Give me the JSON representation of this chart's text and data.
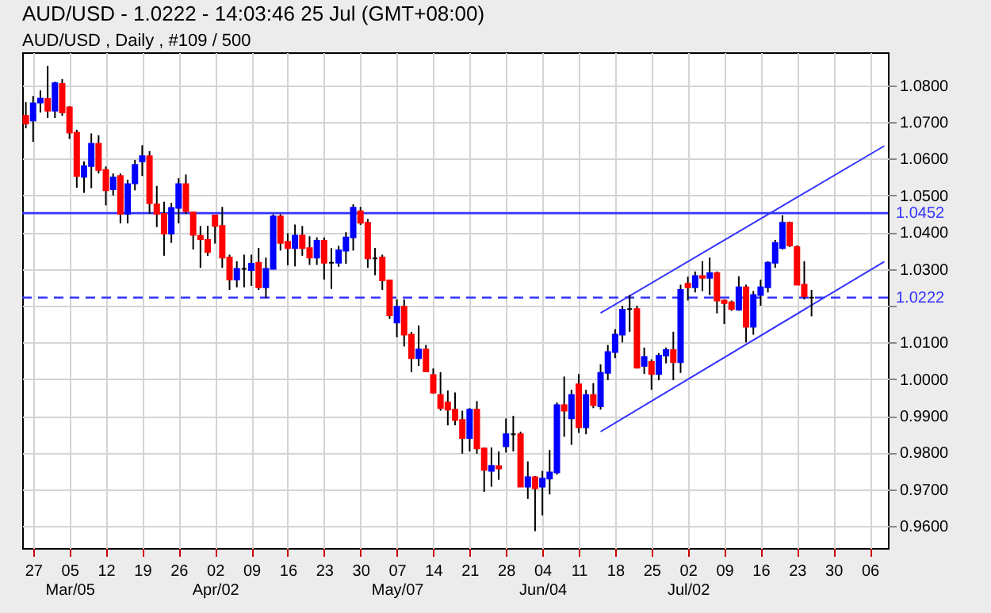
{
  "chart_data": {
    "type": "candlestick",
    "title": "AUD/USD - 1.0222 - 14:03:46  25 Jul (GMT+08:00)",
    "subtitle": "AUD/USD , Daily , #109 / 500",
    "categories": [
      null,
      "27",
      null,
      null,
      null,
      null,
      "05\nMar/05",
      null,
      null,
      null,
      null,
      "12",
      null,
      null,
      null,
      null,
      "19",
      null,
      null,
      null,
      null,
      "26",
      null,
      null,
      null,
      null,
      "02\nApr/02",
      null,
      null,
      null,
      null,
      "09",
      null,
      null,
      null,
      null,
      "16",
      null,
      null,
      null,
      null,
      "23",
      null,
      null,
      null,
      null,
      "30",
      null,
      null,
      null,
      null,
      "07\nMay/07",
      null,
      null,
      null,
      null,
      "14",
      null,
      null,
      null,
      null,
      "21",
      null,
      null,
      null,
      null,
      "28",
      null,
      null,
      null,
      null,
      "04\nJun/04",
      null,
      null,
      null,
      null,
      "11",
      null,
      null,
      null,
      null,
      "18",
      null,
      null,
      null,
      null,
      "25",
      null,
      null,
      null,
      null,
      "02\nJul/02",
      null,
      null,
      null,
      null,
      "09",
      null,
      null,
      null,
      null,
      "16",
      null,
      null,
      null,
      null,
      "23",
      null,
      null,
      null,
      null,
      "30",
      null,
      null,
      null,
      null,
      "06",
      null,
      null
    ],
    "ohlc": [
      [
        1.0717,
        1.0754,
        1.0683,
        1.0696
      ],
      [
        1.0704,
        1.0771,
        1.0646,
        1.0751
      ],
      [
        1.0753,
        1.0786,
        1.0726,
        1.0764
      ],
      [
        1.0763,
        1.0853,
        1.0711,
        1.0731
      ],
      [
        1.0731,
        1.081,
        1.0711,
        1.0806
      ],
      [
        1.0804,
        1.0817,
        1.0717,
        1.0726
      ],
      [
        1.074,
        1.0743,
        1.0654,
        1.0671
      ],
      [
        1.0671,
        1.0679,
        1.0521,
        1.0553
      ],
      [
        1.0551,
        1.0593,
        1.0507,
        1.058
      ],
      [
        1.058,
        1.0669,
        1.052,
        1.0641
      ],
      [
        1.0641,
        1.0664,
        1.056,
        1.0569
      ],
      [
        1.057,
        1.0579,
        1.0473,
        1.0514
      ],
      [
        1.0517,
        1.056,
        1.05,
        1.0549
      ],
      [
        1.0553,
        1.056,
        1.0424,
        1.045
      ],
      [
        1.045,
        1.0543,
        1.0424,
        1.0531
      ],
      [
        1.0533,
        1.0597,
        1.0514,
        1.0583
      ],
      [
        1.0593,
        1.0637,
        1.0553,
        1.0607
      ],
      [
        1.0607,
        1.0621,
        1.045,
        1.0479
      ],
      [
        1.0476,
        1.0526,
        1.0414,
        1.045
      ],
      [
        1.045,
        1.0483,
        1.0336,
        1.0396
      ],
      [
        1.0396,
        1.048,
        1.0371,
        1.0466
      ],
      [
        1.0466,
        1.0547,
        1.0424,
        1.0531
      ],
      [
        1.0531,
        1.0557,
        1.045,
        1.0457
      ],
      [
        1.0454,
        1.0454,
        1.0353,
        1.0393
      ],
      [
        1.039,
        1.0417,
        1.0303,
        1.0381
      ],
      [
        1.0379,
        1.0417,
        1.0336,
        1.0346
      ],
      [
        1.0446,
        1.0446,
        1.0369,
        1.0417
      ],
      [
        1.0417,
        1.0469,
        1.0303,
        1.0331
      ],
      [
        1.0331,
        1.0339,
        1.0243,
        1.0271
      ],
      [
        1.0271,
        1.0321,
        1.025,
        1.03
      ],
      [
        1.03,
        1.0339,
        1.025,
        1.03
      ],
      [
        1.0297,
        1.0339,
        1.0254,
        1.0314
      ],
      [
        1.0317,
        1.0357,
        1.0243,
        1.025
      ],
      [
        1.025,
        1.0331,
        1.0221,
        1.03
      ],
      [
        1.03,
        1.0449,
        1.03,
        1.0443
      ],
      [
        1.0443,
        1.0449,
        1.035,
        1.0371
      ],
      [
        1.0374,
        1.0397,
        1.031,
        1.0357
      ],
      [
        1.0357,
        1.0421,
        1.0307,
        1.0391
      ],
      [
        1.0391,
        1.0417,
        1.0336,
        1.0357
      ],
      [
        1.0357,
        1.0389,
        1.0311,
        1.0331
      ],
      [
        1.0331,
        1.0386,
        1.0311,
        1.0377
      ],
      [
        1.0377,
        1.0386,
        1.0271,
        1.0317
      ],
      [
        1.0317,
        1.0357,
        1.0246,
        1.0317
      ],
      [
        1.0317,
        1.0363,
        1.0306,
        1.0351
      ],
      [
        1.035,
        1.04,
        1.0314,
        1.0386
      ],
      [
        1.0386,
        1.0476,
        1.035,
        1.0467
      ],
      [
        1.0457,
        1.0469,
        1.042,
        1.0426
      ],
      [
        1.0426,
        1.0436,
        1.0303,
        1.0329
      ],
      [
        1.0329,
        1.0357,
        1.0283,
        1.0329
      ],
      [
        1.0331,
        1.0339,
        1.0243,
        1.0269
      ],
      [
        1.0269,
        1.0269,
        1.0164,
        1.0174
      ],
      [
        1.0154,
        1.0217,
        1.0114,
        1.0197
      ],
      [
        1.0197,
        1.0217,
        1.0089,
        1.0121
      ],
      [
        1.0121,
        1.0129,
        1.0019,
        1.0057
      ],
      [
        1.0057,
        1.0146,
        1.0036,
        1.0081
      ],
      [
        1.0081,
        1.0093,
        1.0019,
        1.0021
      ],
      [
        1.0011,
        1.0029,
        0.996,
        0.9963
      ],
      [
        0.9957,
        1.0019,
        0.9914,
        0.9921
      ],
      [
        0.9936,
        0.9969,
        0.9874,
        0.9917
      ],
      [
        0.9917,
        0.9964,
        0.9874,
        0.9889
      ],
      [
        0.9889,
        0.9914,
        0.9797,
        0.984
      ],
      [
        0.984,
        0.9921,
        0.9803,
        0.9917
      ],
      [
        0.9917,
        0.994,
        0.9797,
        0.9811
      ],
      [
        0.9811,
        0.9814,
        0.9693,
        0.9753
      ],
      [
        0.975,
        0.9814,
        0.9707,
        0.9764
      ],
      [
        0.9763,
        0.9803,
        0.9726,
        0.9757
      ],
      [
        0.9817,
        0.9893,
        0.98,
        0.985
      ],
      [
        0.985,
        0.99,
        0.9803,
        0.985
      ],
      [
        0.985,
        0.9857,
        0.9707,
        0.9707
      ],
      [
        0.9707,
        0.9776,
        0.9674,
        0.9733
      ],
      [
        0.9733,
        0.9736,
        0.9586,
        0.9703
      ],
      [
        0.9707,
        0.975,
        0.9629,
        0.9729
      ],
      [
        0.9729,
        0.9807,
        0.9686,
        0.9746
      ],
      [
        0.9746,
        0.9936,
        0.974,
        0.9929
      ],
      [
        0.9929,
        1.0007,
        0.9843,
        0.9914
      ],
      [
        0.9893,
        0.9971,
        0.9821,
        0.9957
      ],
      [
        0.9986,
        1.0014,
        0.9854,
        0.9869
      ],
      [
        0.9869,
        0.9971,
        0.985,
        0.9957
      ],
      [
        0.9957,
        0.9989,
        0.9921,
        0.9929
      ],
      [
        0.9926,
        1.004,
        0.9917,
        1.0017
      ],
      [
        1.0017,
        1.0093,
        0.9997,
        1.0074
      ],
      [
        1.0074,
        1.0136,
        1.0057,
        1.0121
      ],
      [
        1.0121,
        1.02,
        1.01,
        1.0189
      ],
      [
        1.0191,
        1.0229,
        1.0129,
        1.0191
      ],
      [
        1.0191,
        1.02,
        1.0029,
        1.0031
      ],
      [
        1.0036,
        1.0086,
        1.0014,
        1.006
      ],
      [
        1.0047,
        1.0054,
        0.9971,
        1.0014
      ],
      [
        1.0014,
        1.0071,
        0.9997,
        1.0064
      ],
      [
        1.0064,
        1.0086,
        1.0043,
        1.0079
      ],
      [
        1.0079,
        1.0129,
        0.9997,
        1.0046
      ],
      [
        1.0046,
        1.0257,
        1.0017,
        1.0243
      ],
      [
        1.026,
        1.0279,
        1.0214,
        1.025
      ],
      [
        1.025,
        1.0293,
        1.0236,
        1.0281
      ],
      [
        1.0281,
        1.0321,
        1.024,
        1.0276
      ],
      [
        1.0276,
        1.0331,
        1.0229,
        1.0289
      ],
      [
        1.0289,
        1.0293,
        1.0179,
        1.0214
      ],
      [
        1.0214,
        1.0217,
        1.015,
        1.0207
      ],
      [
        1.0209,
        1.0214,
        1.0186,
        1.0191
      ],
      [
        1.0189,
        1.028,
        1.0186,
        1.025
      ],
      [
        1.025,
        1.0257,
        1.01,
        1.0143
      ],
      [
        1.0143,
        1.024,
        1.0121,
        1.0229
      ],
      [
        1.0229,
        1.0271,
        1.02,
        1.025
      ],
      [
        1.025,
        1.0321,
        1.0236,
        1.0317
      ],
      [
        1.0317,
        1.0379,
        1.0303,
        1.0371
      ],
      [
        1.0357,
        1.0446,
        1.0353,
        1.0426
      ],
      [
        1.0426,
        1.0429,
        1.036,
        1.0364
      ],
      [
        1.036,
        1.0364,
        1.0257,
        1.0257
      ],
      [
        1.0257,
        1.0321,
        1.0217,
        1.0226
      ],
      [
        1.0222,
        1.0243,
        1.0171,
        1.0222
      ],
      null,
      null,
      null,
      null,
      null,
      null,
      null,
      null,
      null,
      null
    ],
    "colors": [
      "#ff0000",
      "#0000ff",
      "#0000ff",
      "#ff0000",
      "#0000ff",
      "#ff0000",
      "#ff0000",
      "#ff0000",
      "#0000ff",
      "#0000ff",
      "#ff0000",
      "#ff0000",
      "#0000ff",
      "#ff0000",
      "#0000ff",
      "#0000ff",
      "#0000ff",
      "#ff0000",
      "#ff0000",
      "#ff0000",
      "#0000ff",
      "#0000ff",
      "#ff0000",
      "#ff0000",
      "#ff0000",
      "#ff0000",
      "#ff0000",
      "#ff0000",
      "#ff0000",
      "#0000ff",
      "#000000",
      "#0000ff",
      "#ff0000",
      "#0000ff",
      "#0000ff",
      "#ff0000",
      "#ff0000",
      "#0000ff",
      "#ff0000",
      "#ff0000",
      "#0000ff",
      "#ff0000",
      "#000000",
      "#0000ff",
      "#0000ff",
      "#0000ff",
      "#ff0000",
      "#ff0000",
      "#000000",
      "#ff0000",
      "#ff0000",
      "#0000ff",
      "#ff0000",
      "#ff0000",
      "#0000ff",
      "#ff0000",
      "#ff0000",
      "#ff0000",
      "#ff0000",
      "#ff0000",
      "#ff0000",
      "#0000ff",
      "#ff0000",
      "#ff0000",
      "#0000ff",
      "#ff0000",
      "#0000ff",
      "#000000",
      "#ff0000",
      "#0000ff",
      "#ff0000",
      "#0000ff",
      "#0000ff",
      "#0000ff",
      "#ff0000",
      "#0000ff",
      "#ff0000",
      "#0000ff",
      "#ff0000",
      "#0000ff",
      "#0000ff",
      "#0000ff",
      "#0000ff",
      "#000000",
      "#ff0000",
      "#0000ff",
      "#ff0000",
      "#0000ff",
      "#0000ff",
      "#ff0000",
      "#0000ff",
      "#ff0000",
      "#0000ff",
      "#ff0000",
      "#0000ff",
      "#ff0000",
      "#ff0000",
      "#ff0000",
      "#0000ff",
      "#ff0000",
      "#0000ff",
      "#0000ff",
      "#0000ff",
      "#0000ff",
      "#0000ff",
      "#ff0000",
      "#ff0000",
      "#ff0000",
      "#000000",
      null,
      null,
      null,
      null,
      null,
      null,
      null,
      null,
      null,
      null
    ],
    "series": [
      {
        "type": "line",
        "color": "#3333ff",
        "values": [
          null,
          null,
          null,
          null,
          null,
          null,
          null,
          null,
          null,
          null,
          null,
          null,
          null,
          null,
          null,
          null,
          null,
          null,
          null,
          null,
          null,
          null,
          null,
          null,
          null,
          null,
          null,
          null,
          null,
          null,
          null,
          null,
          null,
          null,
          null,
          null,
          null,
          null,
          null,
          null,
          null,
          null,
          null,
          null,
          null,
          null,
          null,
          null,
          null,
          null,
          null,
          null,
          null,
          null,
          null,
          null,
          null,
          null,
          null,
          null,
          null,
          null,
          null,
          null,
          null,
          null,
          null,
          null,
          null,
          null,
          null,
          null,
          null,
          null,
          null,
          null,
          null,
          null,
          null,
          1.018,
          null,
          null,
          null,
          null,
          null,
          null,
          null,
          null,
          null,
          null,
          null,
          null,
          null,
          null,
          null,
          null,
          null,
          null,
          null,
          null,
          null,
          null,
          null,
          null,
          null,
          null,
          null,
          null,
          null,
          null,
          null,
          null,
          null,
          null,
          null,
          null,
          null,
          null,
          1.0635
        ]
      },
      {
        "type": "line",
        "color": "#3333ff",
        "values": [
          null,
          null,
          null,
          null,
          null,
          null,
          null,
          null,
          null,
          null,
          null,
          null,
          null,
          null,
          null,
          null,
          null,
          null,
          null,
          null,
          null,
          null,
          null,
          null,
          null,
          null,
          null,
          null,
          null,
          null,
          null,
          null,
          null,
          null,
          null,
          null,
          null,
          null,
          null,
          null,
          null,
          null,
          null,
          null,
          null,
          null,
          null,
          null,
          null,
          null,
          null,
          null,
          null,
          null,
          null,
          null,
          null,
          null,
          null,
          null,
          null,
          null,
          null,
          null,
          null,
          null,
          null,
          null,
          null,
          null,
          null,
          null,
          null,
          null,
          null,
          null,
          null,
          null,
          null,
          0.9857,
          null,
          null,
          null,
          null,
          null,
          null,
          null,
          null,
          null,
          null,
          null,
          null,
          null,
          null,
          null,
          null,
          null,
          null,
          null,
          null,
          null,
          null,
          null,
          null,
          null,
          null,
          null,
          null,
          null,
          null,
          null,
          null,
          null,
          null,
          null,
          null,
          null,
          null,
          1.032
        ]
      }
    ],
    "ref_lines": [
      {
        "axis": "y",
        "value": 1.0452,
        "label": "1.0452",
        "color": "#3333ff",
        "line_style": "solid"
      },
      {
        "axis": "y",
        "value": 1.0222,
        "label": "1.0222",
        "color": "#3333ff",
        "line_style": "dashed"
      }
    ],
    "ylim": [
      0.954,
      1.089
    ],
    "yticks": [
      {
        "value": 1.08,
        "label": "1.0800"
      },
      {
        "value": 1.07,
        "label": "1.0700"
      },
      {
        "value": 1.06,
        "label": "1.0600"
      },
      {
        "value": 1.05,
        "label": "1.0500"
      },
      {
        "value": 1.04,
        "label": "1.0400"
      },
      {
        "value": 1.03,
        "label": "1.0300"
      },
      {
        "value": 1.02,
        "label": null
      },
      {
        "value": 1.01,
        "label": "1.0100"
      },
      {
        "value": 1.0,
        "label": "1.0000"
      },
      {
        "value": 0.99,
        "label": "0.9900"
      },
      {
        "value": 0.98,
        "label": "0.9800"
      },
      {
        "value": 0.97,
        "label": "0.9700"
      },
      {
        "value": 0.96,
        "label": "0.9600"
      }
    ],
    "grid": true
  }
}
